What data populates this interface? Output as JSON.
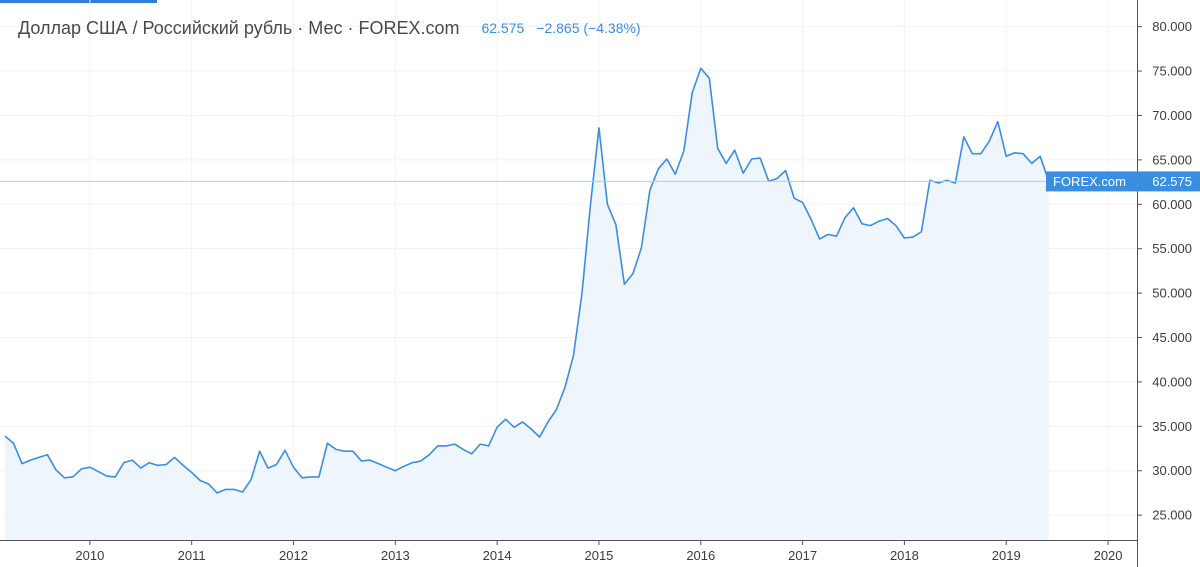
{
  "legend": {
    "title": "Доллар США / Российский рубль · Мес · FOREX.com",
    "last_price": "62.575",
    "change": "−2.865 (−4.38%)"
  },
  "price_badge": {
    "source": "FOREX.com",
    "value": "62.575"
  },
  "colors": {
    "line": "#3a8ee0",
    "area_fill": "#eef5fd",
    "grid": "#f0f3fa",
    "axis": "#545454",
    "current_price_line": "#a9d0ee",
    "badge": "#3a8ee0",
    "top_accent": "#2f7fd8"
  },
  "chart_data": {
    "type": "area",
    "title": "Доллар США / Российский рубль · Мес · FOREX.com",
    "xlabel": "",
    "ylabel": "",
    "x_start": "2009-03",
    "x_step": "1 month",
    "xlim": [
      "2009-03",
      "2020-05"
    ],
    "ylim": [
      22.2,
      83.0
    ],
    "y_ticks": [
      "25.000",
      "30.000",
      "35.000",
      "40.000",
      "45.000",
      "50.000",
      "55.000",
      "60.000",
      "65.000",
      "70.000",
      "75.000",
      "80.000"
    ],
    "x_ticks": [
      "2010",
      "2011",
      "2012",
      "2013",
      "2014",
      "2015",
      "2016",
      "2017",
      "2018",
      "2019",
      "2020"
    ],
    "grid": true,
    "current_value": 62.575,
    "values": [
      33.9,
      33.1,
      30.8,
      31.2,
      31.5,
      31.8,
      30.1,
      29.2,
      29.3,
      30.2,
      30.4,
      29.9,
      29.4,
      29.3,
      30.9,
      31.2,
      30.3,
      30.9,
      30.6,
      30.7,
      31.5,
      30.6,
      29.8,
      28.9,
      28.5,
      27.5,
      27.9,
      27.9,
      27.6,
      29.0,
      32.2,
      30.3,
      30.7,
      32.3,
      30.4,
      29.2,
      29.3,
      29.3,
      33.1,
      32.4,
      32.2,
      32.2,
      31.1,
      31.2,
      30.8,
      30.4,
      30.0,
      30.5,
      30.9,
      31.1,
      31.8,
      32.8,
      32.8,
      33.0,
      32.4,
      31.9,
      33.0,
      32.8,
      34.9,
      35.8,
      34.9,
      35.5,
      34.7,
      33.8,
      35.5,
      36.9,
      39.4,
      43.0,
      50.0,
      60.0,
      68.6,
      60.0,
      57.7,
      51.0,
      52.2,
      55.1,
      61.6,
      64.0,
      65.1,
      63.4,
      66.0,
      72.6,
      75.3,
      74.2,
      66.3,
      64.6,
      66.1,
      63.5,
      65.1,
      65.2,
      62.6,
      62.9,
      63.8,
      60.7,
      60.2,
      58.3,
      56.1,
      56.6,
      56.4,
      58.5,
      59.6,
      57.8,
      57.6,
      58.1,
      58.4,
      57.6,
      56.2,
      56.3,
      56.9,
      62.7,
      62.4,
      62.7,
      62.4,
      67.6,
      65.7,
      65.7,
      67.1,
      69.3,
      65.4,
      65.8,
      65.7,
      64.6,
      65.4,
      62.575
    ]
  }
}
